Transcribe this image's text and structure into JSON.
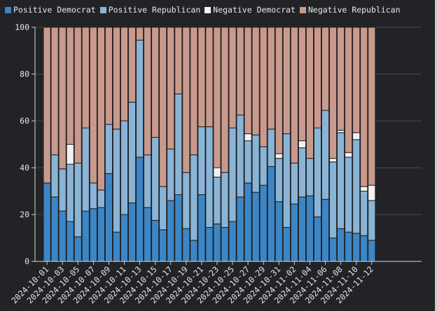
{
  "chart_data": {
    "type": "bar",
    "stacked": true,
    "title": "",
    "xlabel": "",
    "ylabel": "",
    "ylim": [
      0,
      100
    ],
    "yticks": [
      0,
      20,
      40,
      60,
      80,
      100
    ],
    "grid": true,
    "legend_position": "top-left",
    "categories": [
      "2024-10-01",
      "2024-10-02",
      "2024-10-03",
      "2024-10-04",
      "2024-10-05",
      "2024-10-06",
      "2024-10-07",
      "2024-10-08",
      "2024-10-09",
      "2024-10-10",
      "2024-10-11",
      "2024-10-12",
      "2024-10-13",
      "2024-10-14",
      "2024-10-15",
      "2024-10-16",
      "2024-10-17",
      "2024-10-18",
      "2024-10-19",
      "2024-10-20",
      "2024-10-21",
      "2024-10-22",
      "2024-10-23",
      "2024-10-24",
      "2024-10-25",
      "2024-10-26",
      "2024-10-27",
      "2024-10-28",
      "2024-10-29",
      "2024-10-30",
      "2024-10-31",
      "2024-11-01",
      "2024-11-02",
      "2024-11-03",
      "2024-11-04",
      "2024-11-05",
      "2024-11-06",
      "2024-11-07",
      "2024-11-08",
      "2024-11-09",
      "2024-11-10",
      "2024-11-11",
      "2024-11-12"
    ],
    "xtick_labels": [
      "2024-10-01",
      "2024-10-03",
      "2024-10-05",
      "2024-10-07",
      "2024-10-09",
      "2024-10-11",
      "2024-10-13",
      "2024-10-15",
      "2024-10-17",
      "2024-10-19",
      "2024-10-21",
      "2024-10-23",
      "2024-10-25",
      "2024-10-27",
      "2024-10-29",
      "2024-10-31",
      "2024-11-02",
      "2024-11-04",
      "2024-11-06",
      "2024-11-08",
      "2024-11-10",
      "2024-11-12"
    ],
    "series": [
      {
        "name": "Positive Democrat",
        "color": "#3d86c6",
        "values": [
          33.5,
          27.5,
          21.5,
          17.0,
          10.5,
          21.5,
          22.5,
          23.0,
          37.5,
          12.5,
          20.0,
          25.0,
          44.5,
          23.0,
          17.5,
          13.5,
          26.0,
          28.5,
          14.0,
          9.0,
          28.5,
          14.5,
          16.0,
          14.5,
          17.0,
          27.5,
          33.5,
          29.5,
          32.5,
          40.5,
          25.5,
          14.5,
          24.5,
          27.5,
          28.0,
          19.0,
          26.5,
          10.0,
          14.0,
          12.5,
          12.0,
          11.0,
          9.0
        ]
      },
      {
        "name": "Positive Republican",
        "color": "#8ab4d6",
        "values": [
          0.0,
          18.0,
          18.0,
          24.5,
          31.5,
          35.5,
          11.0,
          7.5,
          21.0,
          44.0,
          40.0,
          43.0,
          50.0,
          22.5,
          35.5,
          18.5,
          22.0,
          43.0,
          24.0,
          36.5,
          29.0,
          43.0,
          20.0,
          23.5,
          40.0,
          35.0,
          18.0,
          24.5,
          16.5,
          16.0,
          18.5,
          40.0,
          17.5,
          21.0,
          16.0,
          38.0,
          38.0,
          32.5,
          41.0,
          32.0,
          40.0,
          19.0,
          17.0
        ]
      },
      {
        "name": "Negative Democrat",
        "color": "#f2f2f2",
        "values": [
          0.0,
          0.0,
          0.0,
          8.5,
          0.0,
          0.0,
          0.0,
          0.0,
          0.0,
          0.0,
          0.0,
          0.0,
          0.0,
          0.0,
          0.0,
          0.0,
          0.0,
          0.0,
          0.0,
          0.0,
          0.0,
          0.0,
          4.0,
          0.0,
          0.0,
          0.0,
          3.0,
          0.0,
          0.0,
          0.0,
          2.0,
          0.0,
          0.0,
          3.0,
          0.0,
          0.0,
          0.0,
          1.5,
          1.0,
          2.0,
          3.0,
          2.0,
          6.5
        ]
      },
      {
        "name": "Negative Republican",
        "color": "#c99a8c",
        "values": [
          66.5,
          54.5,
          60.5,
          50.0,
          58.0,
          43.0,
          66.5,
          69.5,
          41.5,
          43.5,
          40.0,
          32.0,
          5.5,
          54.5,
          47.0,
          68.0,
          52.0,
          28.5,
          62.0,
          54.5,
          42.5,
          42.5,
          60.0,
          62.0,
          43.0,
          37.5,
          45.5,
          46.0,
          51.0,
          43.5,
          54.0,
          45.5,
          58.0,
          48.5,
          56.0,
          43.0,
          35.5,
          56.0,
          44.0,
          53.5,
          45.0,
          68.0,
          67.5
        ]
      }
    ]
  }
}
